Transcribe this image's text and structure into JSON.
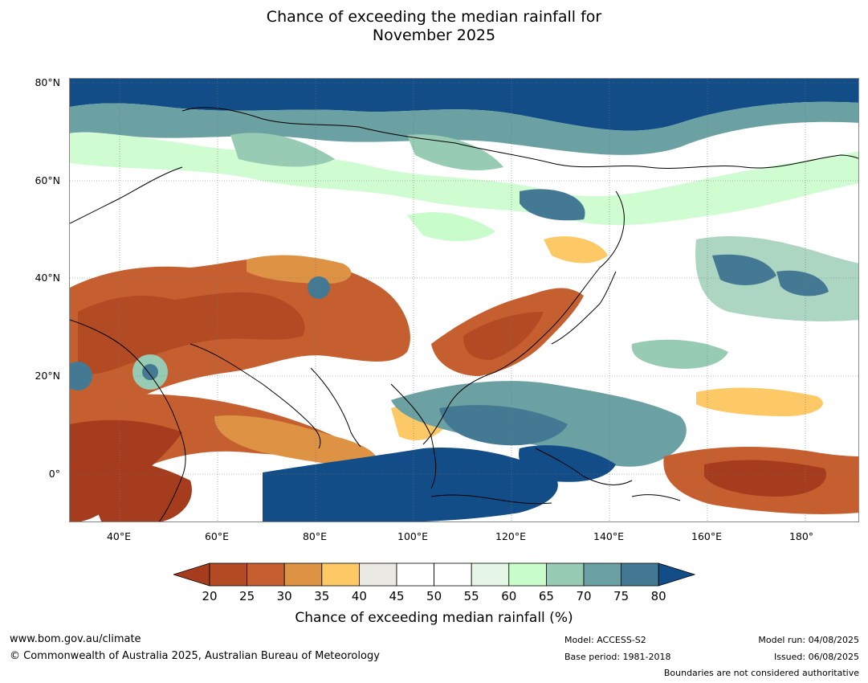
{
  "title": {
    "line1": "Chance of exceeding the median rainfall for",
    "line2": "November 2025"
  },
  "map": {
    "lat_labels": [
      "80°N",
      "60°N",
      "40°N",
      "20°N",
      "0°"
    ],
    "lon_labels": [
      "40°E",
      "60°E",
      "80°E",
      "100°E",
      "120°E",
      "140°E",
      "160°E",
      "180°"
    ],
    "extent": {
      "lon_min": 30,
      "lon_max": 191,
      "lat_min": -10,
      "lat_max": 81
    }
  },
  "colorbar": {
    "ticks": [
      "20",
      "25",
      "30",
      "35",
      "40",
      "45",
      "50",
      "55",
      "60",
      "65",
      "70",
      "75",
      "80"
    ],
    "colors": [
      "#a43c1d",
      "#b24a24",
      "#c65f30",
      "#de9344",
      "#fcc966",
      "#eae8e3",
      "#ffffff",
      "#ffffff",
      "#e6f6e6",
      "#c8fcca",
      "#97cbb3",
      "#6ba1a2",
      "#447993",
      "#124d87"
    ],
    "label": "Chance of exceeding median rainfall (%)"
  },
  "footer": {
    "website": "www.bom.gov.au/climate",
    "copyright": "© Commonwealth of Australia 2025, Australian Bureau of Meteorology",
    "model": "Model: ACCESS-S2",
    "base_period": "Base period: 1981-2018",
    "model_run": "Model run: 04/08/2025",
    "issued": "Issued: 06/08/2025",
    "disclaimer": "Boundaries are not considered authoritative"
  }
}
